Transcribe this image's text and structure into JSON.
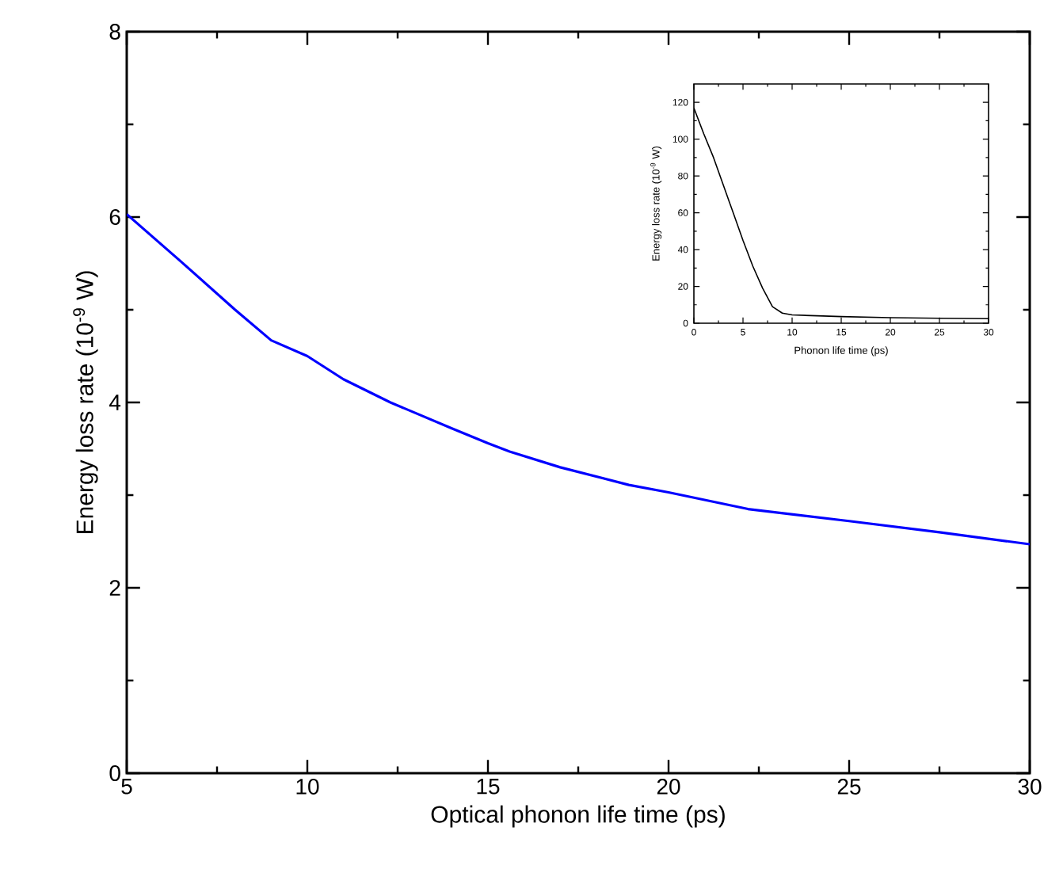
{
  "chart_data": [
    {
      "type": "line",
      "xlabel": "Optical phonon life time (ps)",
      "ylabel": "Energy loss rate (10$^{-9}$ W)",
      "x": [
        5,
        6.5,
        8,
        9,
        10,
        11,
        12.3,
        14,
        15,
        15.6,
        17,
        18.9,
        20,
        22.2,
        25,
        27.5,
        30
      ],
      "series": [
        {
          "color": "#0000ff",
          "values": [
            6.03,
            5.52,
            5.0,
            4.67,
            4.5,
            4.25,
            4.0,
            3.72,
            3.56,
            3.47,
            3.3,
            3.11,
            3.03,
            2.85,
            2.72,
            2.6,
            2.47
          ]
        }
      ],
      "xlim": [
        5,
        30
      ],
      "ylim": [
        0,
        8
      ],
      "xticks": [
        5,
        10,
        15,
        20,
        25,
        30
      ],
      "yticks": [
        0,
        2,
        4,
        6,
        8
      ]
    },
    {
      "type": "line",
      "xlabel": "Phonon life time (ps)",
      "ylabel": "Energy loss rate (10$^{-9}$ W)",
      "x": [
        0,
        1,
        2,
        3,
        4,
        5,
        6,
        7,
        8,
        9,
        10,
        15,
        20,
        25,
        30
      ],
      "series": [
        {
          "color": "#000000",
          "values": [
            117,
            103,
            90,
            75,
            60,
            45,
            31,
            19,
            9,
            5.5,
            4.5,
            3.6,
            3.0,
            2.7,
            2.5
          ]
        }
      ],
      "xlim": [
        0,
        30
      ],
      "ylim": [
        0,
        130
      ],
      "xticks": [
        0,
        5,
        10,
        15,
        20,
        25,
        30
      ],
      "yticks": [
        0,
        20,
        40,
        60,
        80,
        100,
        120
      ]
    }
  ]
}
